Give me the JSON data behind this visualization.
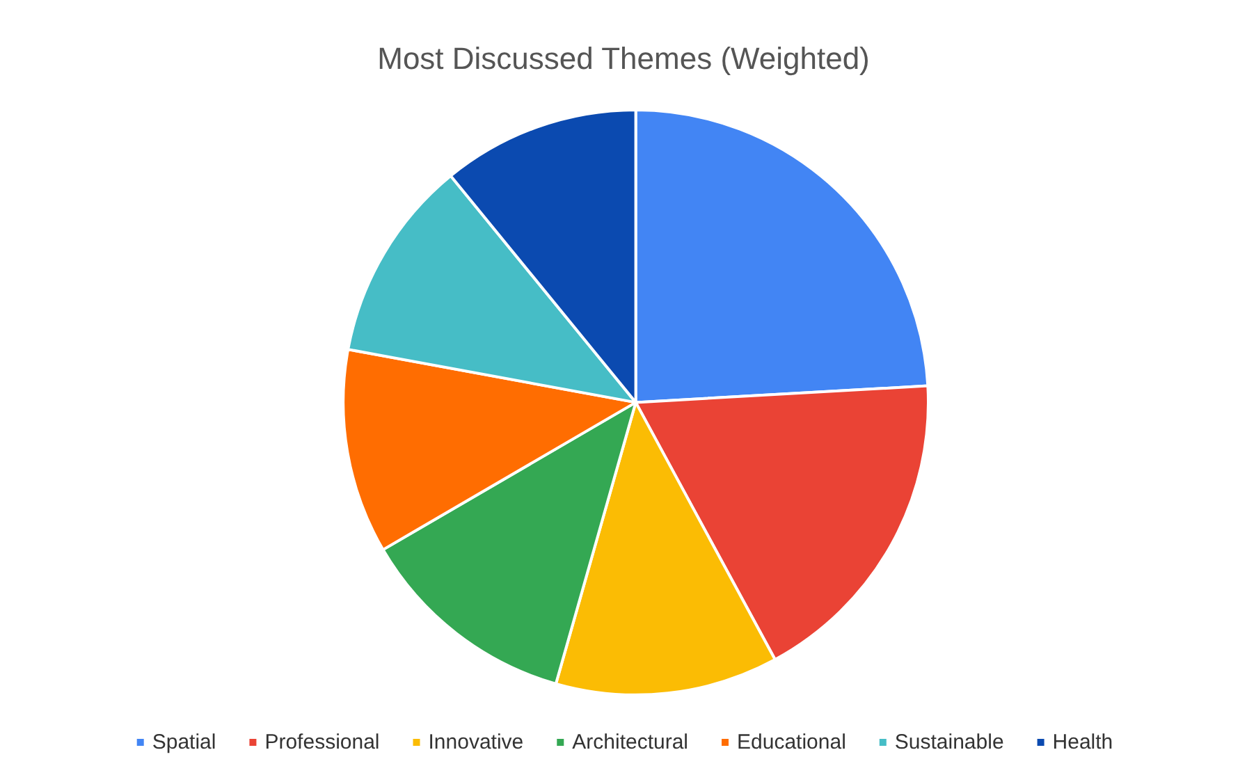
{
  "chart_data": {
    "type": "pie",
    "title": "Most Discussed Themes (Weighted)",
    "categories": [
      "Spatial",
      "Professional",
      "Innovative",
      "Architectural",
      "Educational",
      "Sustainable",
      "Health"
    ],
    "values": [
      24.1,
      18,
      12.3,
      12.2,
      11.3,
      11.2,
      10.9
    ],
    "colors": [
      "#4285f4",
      "#ea4335",
      "#fbbc04",
      "#34a853",
      "#ff6d01",
      "#46bdc6",
      "#0b4ab0"
    ],
    "legend": "bottom"
  }
}
